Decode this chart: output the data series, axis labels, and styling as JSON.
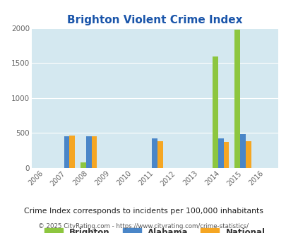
{
  "title": "Brighton Violent Crime Index",
  "subtitle": "Crime Index corresponds to incidents per 100,000 inhabitants",
  "footer": "© 2025 CityRating.com - https://www.cityrating.com/crime-statistics/",
  "years": [
    2006,
    2007,
    2008,
    2009,
    2010,
    2011,
    2012,
    2013,
    2014,
    2015,
    2016
  ],
  "brighton": [
    0,
    0,
    80,
    0,
    0,
    0,
    0,
    0,
    1590,
    1975,
    0
  ],
  "alabama": [
    0,
    450,
    450,
    0,
    0,
    425,
    0,
    0,
    425,
    480,
    0
  ],
  "national": [
    0,
    465,
    450,
    0,
    0,
    380,
    0,
    0,
    365,
    375,
    0
  ],
  "brighton_color": "#8dc63f",
  "alabama_color": "#4a86c8",
  "national_color": "#f5a623",
  "bg_color": "#d4e8f0",
  "title_color": "#1a55aa",
  "subtitle_color": "#222222",
  "footer_copyright_color": "#555555",
  "footer_url_color": "#3388cc",
  "ylim": [
    0,
    2000
  ],
  "yticks": [
    0,
    500,
    1000,
    1500,
    2000
  ],
  "bar_width": 0.25,
  "grid_color": "#ffffff"
}
